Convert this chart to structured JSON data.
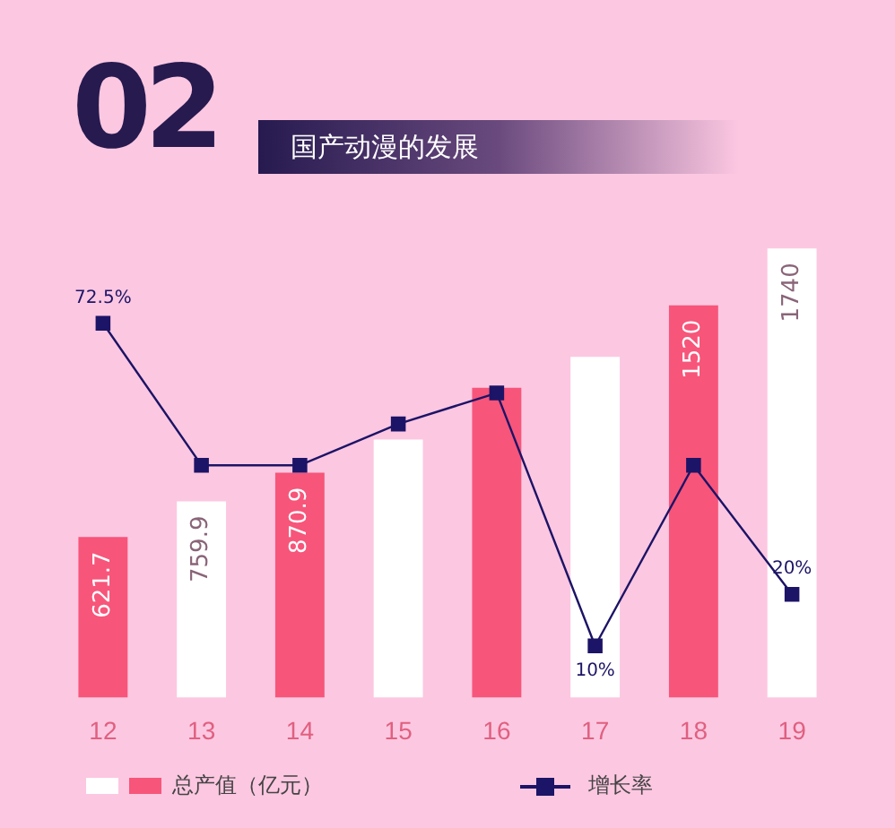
{
  "chart_data": {
    "type": "bar",
    "title": "国产动漫的发展",
    "subtitle": "02",
    "categories": [
      "12",
      "13",
      "14",
      "15",
      "16",
      "17",
      "18",
      "19"
    ],
    "series": [
      {
        "name": "总产值（亿元）",
        "type": "bar",
        "colors": [
          "#f7557a",
          "#ffffff",
          "#f7557a",
          "#ffffff",
          "#f7557a",
          "#ffffff",
          "#f7557a",
          "#ffffff"
        ],
        "values": [
          621.7,
          759.9,
          870.9,
          1000,
          1200,
          1320,
          1520,
          1740
        ],
        "value_labels": [
          "621.7",
          "759.9",
          "870.9",
          null,
          null,
          null,
          "1520",
          "1740"
        ]
      },
      {
        "name": "增长率",
        "type": "line",
        "axis": "y2",
        "color": "#1c1466",
        "values": [
          72.5,
          45,
          45,
          53,
          59,
          10,
          45,
          20
        ],
        "value_labels": [
          "72.5%",
          null,
          null,
          null,
          null,
          "10%",
          null,
          "20%"
        ]
      }
    ],
    "tick_labels": "x",
    "grid": false,
    "legend": "bottom",
    "marker": "square"
  }
}
